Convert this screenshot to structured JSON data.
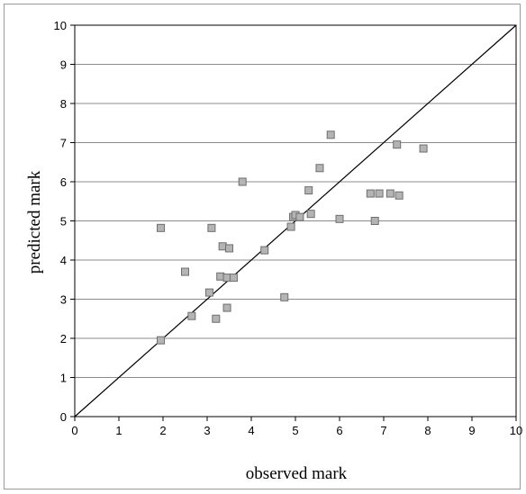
{
  "chart_data": {
    "type": "scatter",
    "title": "",
    "xlabel": "observed mark",
    "ylabel": "predicted mark",
    "xlim": [
      0,
      10
    ],
    "ylim": [
      0,
      10
    ],
    "x_ticks": [
      "0",
      "1",
      "2",
      "3",
      "4",
      "5",
      "6",
      "7",
      "8",
      "9",
      "10"
    ],
    "y_ticks": [
      "0",
      "1",
      "2",
      "3",
      "4",
      "5",
      "6",
      "7",
      "8",
      "9",
      "10"
    ],
    "grid": "horizontal",
    "legend": "none",
    "reference_line": {
      "from": [
        0,
        0
      ],
      "to": [
        10,
        10
      ]
    },
    "colors": {
      "marker_fill": "#b4b4b4",
      "marker_edge": "#6e6e6e",
      "grid": "#8c8c8c",
      "line": "#000000"
    },
    "series": [
      {
        "points": [
          [
            1.95,
            1.95
          ],
          [
            1.95,
            4.82
          ],
          [
            2.5,
            3.7
          ],
          [
            2.65,
            2.57
          ],
          [
            3.05,
            3.17
          ],
          [
            3.1,
            4.82
          ],
          [
            3.2,
            2.5
          ],
          [
            3.3,
            3.58
          ],
          [
            3.35,
            4.35
          ],
          [
            3.45,
            3.55
          ],
          [
            3.45,
            2.78
          ],
          [
            3.5,
            4.3
          ],
          [
            3.6,
            3.55
          ],
          [
            3.8,
            6.0
          ],
          [
            4.3,
            4.25
          ],
          [
            4.75,
            3.05
          ],
          [
            4.9,
            4.85
          ],
          [
            4.95,
            5.1
          ],
          [
            5.0,
            5.15
          ],
          [
            5.1,
            5.1
          ],
          [
            5.3,
            5.78
          ],
          [
            5.35,
            5.18
          ],
          [
            5.55,
            6.35
          ],
          [
            5.8,
            7.2
          ],
          [
            6.0,
            5.05
          ],
          [
            6.7,
            5.7
          ],
          [
            6.8,
            5.0
          ],
          [
            6.9,
            5.7
          ],
          [
            7.15,
            5.7
          ],
          [
            7.3,
            6.95
          ],
          [
            7.35,
            5.65
          ],
          [
            7.9,
            6.85
          ]
        ]
      }
    ]
  }
}
